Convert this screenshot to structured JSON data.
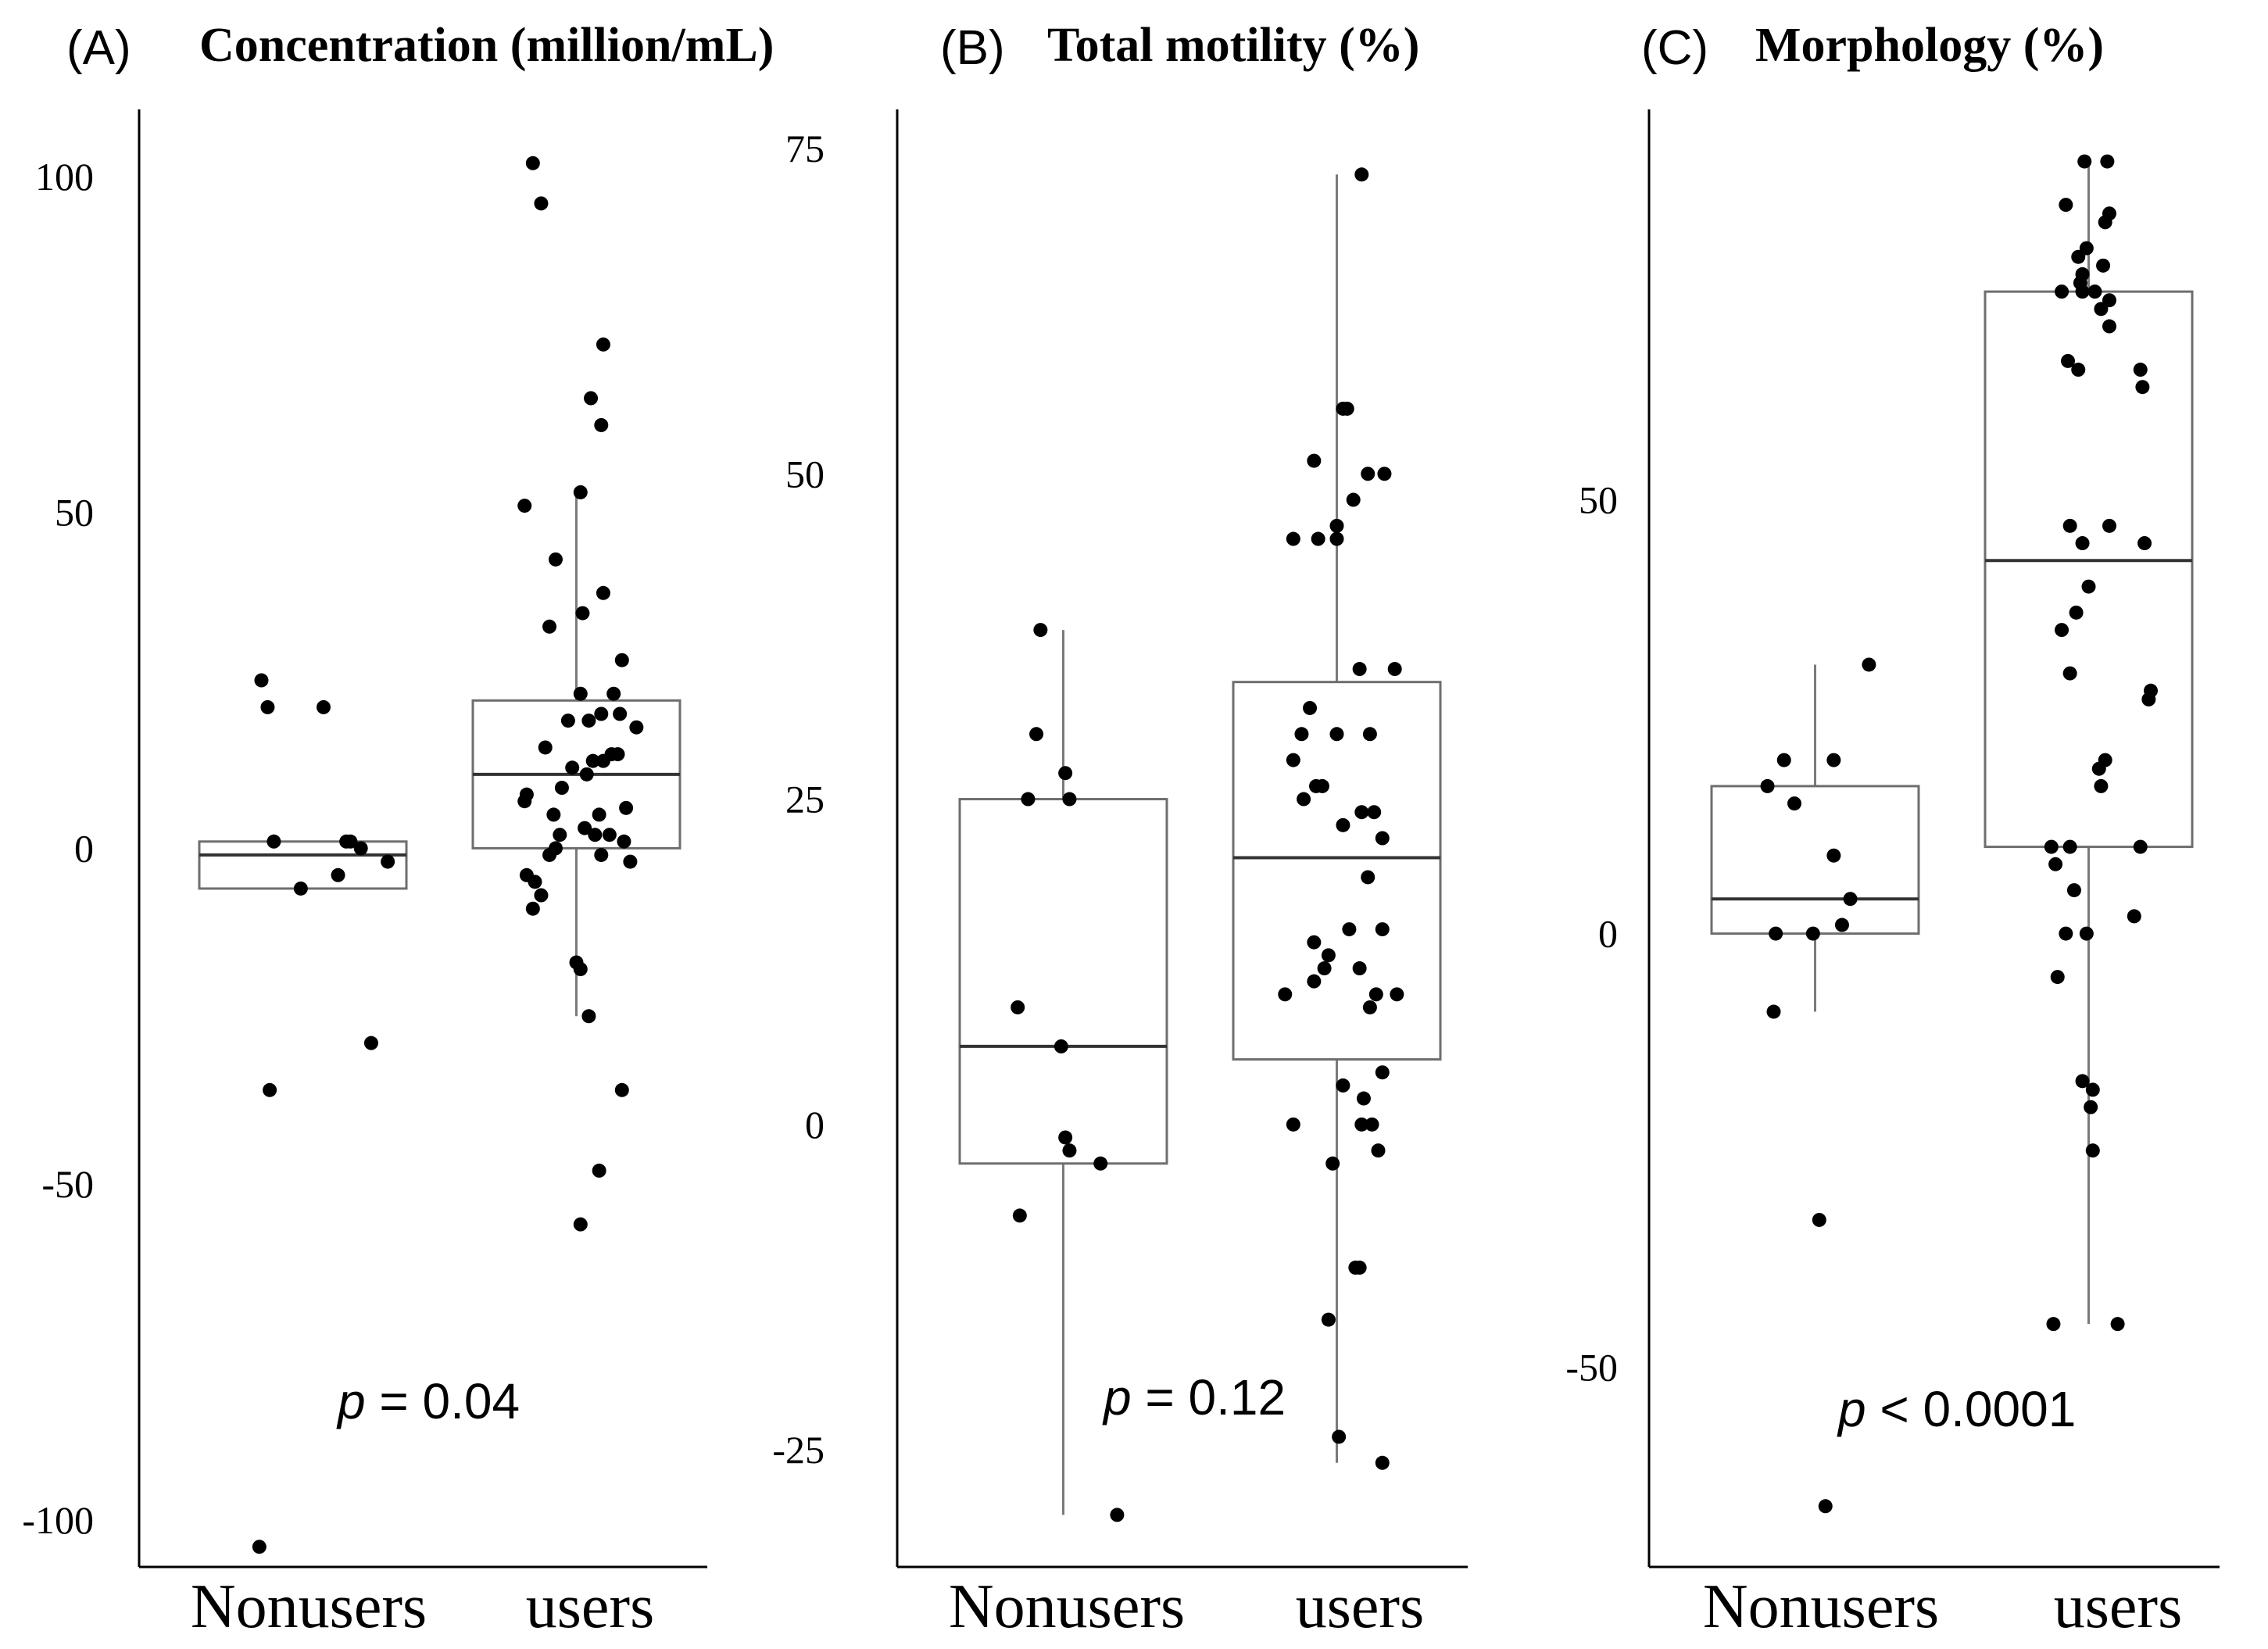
{
  "chart_data": [
    {
      "type": "box",
      "letter": "(A)",
      "title": "Concentration (million/mL)",
      "categories": [
        "Nonusers",
        "users"
      ],
      "yticks": [
        100,
        50,
        0,
        -50,
        -100
      ],
      "ylim": [
        -107,
        110
      ],
      "pvalue": {
        "p": "p",
        "text": " = 0.04"
      },
      "boxes": [
        {
          "name": "Nonusers",
          "q1": -6,
          "median": -1,
          "q3": 1
        },
        {
          "name": "users",
          "q1": 0,
          "median": 11,
          "q3": 22,
          "whisker_low": -25,
          "whisker_high": 53
        }
      ],
      "points": [
        [
          [
            0.3,
            25
          ],
          [
            0.33,
            21
          ],
          [
            0.6,
            21
          ],
          [
            0.36,
            1
          ],
          [
            0.71,
            1
          ],
          [
            0.73,
            1
          ],
          [
            0.78,
            0
          ],
          [
            0.91,
            -2
          ],
          [
            0.67,
            -4
          ],
          [
            0.49,
            -6
          ],
          [
            0.83,
            -29
          ],
          [
            0.34,
            -36
          ],
          [
            0.29,
            -104
          ]
        ],
        [
          [
            0.29,
            102
          ],
          [
            0.33,
            96
          ],
          [
            0.63,
            75
          ],
          [
            0.57,
            67
          ],
          [
            0.62,
            63
          ],
          [
            0.52,
            53
          ],
          [
            0.25,
            51
          ],
          [
            0.4,
            43
          ],
          [
            0.63,
            38
          ],
          [
            0.53,
            35
          ],
          [
            0.37,
            33
          ],
          [
            0.72,
            28
          ],
          [
            0.52,
            23
          ],
          [
            0.68,
            23
          ],
          [
            0.71,
            20
          ],
          [
            0.62,
            20
          ],
          [
            0.56,
            19
          ],
          [
            0.79,
            18
          ],
          [
            0.46,
            19
          ],
          [
            0.35,
            15
          ],
          [
            0.67,
            14
          ],
          [
            0.7,
            14
          ],
          [
            0.63,
            13
          ],
          [
            0.58,
            13
          ],
          [
            0.48,
            12
          ],
          [
            0.55,
            11
          ],
          [
            0.43,
            9
          ],
          [
            0.26,
            8
          ],
          [
            0.25,
            7
          ],
          [
            0.74,
            6
          ],
          [
            0.61,
            5
          ],
          [
            0.39,
            5
          ],
          [
            0.54,
            3
          ],
          [
            0.42,
            2
          ],
          [
            0.59,
            2
          ],
          [
            0.66,
            2
          ],
          [
            0.73,
            1
          ],
          [
            0.4,
            0
          ],
          [
            0.37,
            -1
          ],
          [
            0.62,
            -1
          ],
          [
            0.76,
            -2
          ],
          [
            0.26,
            -4
          ],
          [
            0.3,
            -5
          ],
          [
            0.33,
            -7
          ],
          [
            0.29,
            -9
          ],
          [
            0.5,
            -17
          ],
          [
            0.52,
            -18
          ],
          [
            0.56,
            -25
          ],
          [
            0.72,
            -36
          ],
          [
            0.61,
            -48
          ],
          [
            0.52,
            -56
          ]
        ]
      ]
    },
    {
      "type": "box",
      "letter": "(B)",
      "title": "Total motility (%)",
      "categories": [
        "Nonusers",
        "users"
      ],
      "yticks": [
        75,
        50,
        25,
        0,
        -25
      ],
      "ylim": [
        -34,
        78
      ],
      "pvalue": {
        "p": "p",
        "text": " = 0.12"
      },
      "boxes": [
        {
          "name": "Nonusers",
          "q1": -3,
          "median": 6,
          "q3": 25,
          "whisker_low": -30,
          "whisker_high": 38
        },
        {
          "name": "users",
          "q1": 5,
          "median": 20.5,
          "q3": 34,
          "whisker_low": -26,
          "whisker_high": 73
        }
      ],
      "points": [
        [
          [
            0.39,
            38
          ],
          [
            0.37,
            30
          ],
          [
            0.51,
            27
          ],
          [
            0.33,
            25
          ],
          [
            0.53,
            25
          ],
          [
            0.28,
            9
          ],
          [
            0.49,
            6
          ],
          [
            0.51,
            -1
          ],
          [
            0.53,
            -2
          ],
          [
            0.68,
            -3
          ],
          [
            0.29,
            -7
          ],
          [
            0.76,
            -30
          ]
        ],
        [
          [
            0.62,
            73
          ],
          [
            0.53,
            55
          ],
          [
            0.55,
            55
          ],
          [
            0.39,
            51
          ],
          [
            0.65,
            50
          ],
          [
            0.73,
            50
          ],
          [
            0.58,
            48
          ],
          [
            0.5,
            46
          ],
          [
            0.29,
            45
          ],
          [
            0.41,
            45
          ],
          [
            0.5,
            45
          ],
          [
            0.78,
            35
          ],
          [
            0.61,
            35
          ],
          [
            0.37,
            32
          ],
          [
            0.33,
            30
          ],
          [
            0.5,
            30
          ],
          [
            0.66,
            30
          ],
          [
            0.29,
            28
          ],
          [
            0.4,
            26
          ],
          [
            0.43,
            26
          ],
          [
            0.34,
            25
          ],
          [
            0.62,
            24
          ],
          [
            0.68,
            24
          ],
          [
            0.53,
            23
          ],
          [
            0.72,
            22
          ],
          [
            0.65,
            19
          ],
          [
            0.56,
            15
          ],
          [
            0.72,
            15
          ],
          [
            0.39,
            14
          ],
          [
            0.46,
            13
          ],
          [
            0.44,
            12
          ],
          [
            0.61,
            12
          ],
          [
            0.39,
            11
          ],
          [
            0.25,
            10
          ],
          [
            0.69,
            10
          ],
          [
            0.79,
            10
          ],
          [
            0.66,
            9
          ],
          [
            0.72,
            4
          ],
          [
            0.53,
            3
          ],
          [
            0.63,
            2
          ],
          [
            0.62,
            0
          ],
          [
            0.67,
            0
          ],
          [
            0.29,
            0
          ],
          [
            0.7,
            -2
          ],
          [
            0.48,
            -3
          ],
          [
            0.59,
            -11
          ],
          [
            0.61,
            -11
          ],
          [
            0.46,
            -15
          ],
          [
            0.51,
            -24
          ],
          [
            0.72,
            -26
          ]
        ]
      ]
    },
    {
      "type": "box",
      "letter": "(C)",
      "title": "Morphology (%)",
      "categories": [
        "Nonusers",
        "users"
      ],
      "yticks": [
        50,
        0,
        -50
      ],
      "ylim": [
        -73,
        95
      ],
      "pvalue": {
        "p": "p",
        "text": " < 0.0001"
      },
      "boxes": [
        {
          "name": "Nonusers",
          "q1": 0,
          "median": 4,
          "q3": 17,
          "whisker_low": -9,
          "whisker_high": 31
        },
        {
          "name": "users",
          "q1": 10,
          "median": 43,
          "q3": 74,
          "whisker_low": -45,
          "whisker_high": 89
        }
      ],
      "points": [
        [
          [
            0.76,
            31
          ],
          [
            0.35,
            20
          ],
          [
            0.59,
            20
          ],
          [
            0.27,
            17
          ],
          [
            0.4,
            15
          ],
          [
            0.59,
            9
          ],
          [
            0.67,
            4
          ],
          [
            0.63,
            1
          ],
          [
            0.31,
            0
          ],
          [
            0.49,
            0
          ],
          [
            0.3,
            -9
          ],
          [
            0.52,
            -33
          ],
          [
            0.55,
            -66
          ]
        ],
        [
          [
            0.48,
            89
          ],
          [
            0.59,
            89
          ],
          [
            0.39,
            84
          ],
          [
            0.6,
            83
          ],
          [
            0.58,
            82
          ],
          [
            0.49,
            79
          ],
          [
            0.45,
            78
          ],
          [
            0.57,
            77
          ],
          [
            0.47,
            76
          ],
          [
            0.46,
            75
          ],
          [
            0.37,
            74
          ],
          [
            0.47,
            74
          ],
          [
            0.53,
            74
          ],
          [
            0.6,
            73
          ],
          [
            0.56,
            72
          ],
          [
            0.6,
            70
          ],
          [
            0.4,
            66
          ],
          [
            0.45,
            65
          ],
          [
            0.75,
            65
          ],
          [
            0.76,
            63
          ],
          [
            0.41,
            47
          ],
          [
            0.6,
            47
          ],
          [
            0.47,
            45
          ],
          [
            0.77,
            45
          ],
          [
            0.5,
            40
          ],
          [
            0.44,
            37
          ],
          [
            0.37,
            35
          ],
          [
            0.41,
            30
          ],
          [
            0.8,
            28
          ],
          [
            0.79,
            27
          ],
          [
            0.58,
            20
          ],
          [
            0.55,
            19
          ],
          [
            0.56,
            17
          ],
          [
            0.32,
            10
          ],
          [
            0.41,
            10
          ],
          [
            0.75,
            10
          ],
          [
            0.34,
            8
          ],
          [
            0.43,
            5
          ],
          [
            0.72,
            2
          ],
          [
            0.49,
            0
          ],
          [
            0.39,
            0
          ],
          [
            0.35,
            -5
          ],
          [
            0.47,
            -17
          ],
          [
            0.52,
            -18
          ],
          [
            0.51,
            -20
          ],
          [
            0.52,
            -25
          ],
          [
            0.33,
            -45
          ],
          [
            0.64,
            -45
          ]
        ]
      ]
    }
  ]
}
